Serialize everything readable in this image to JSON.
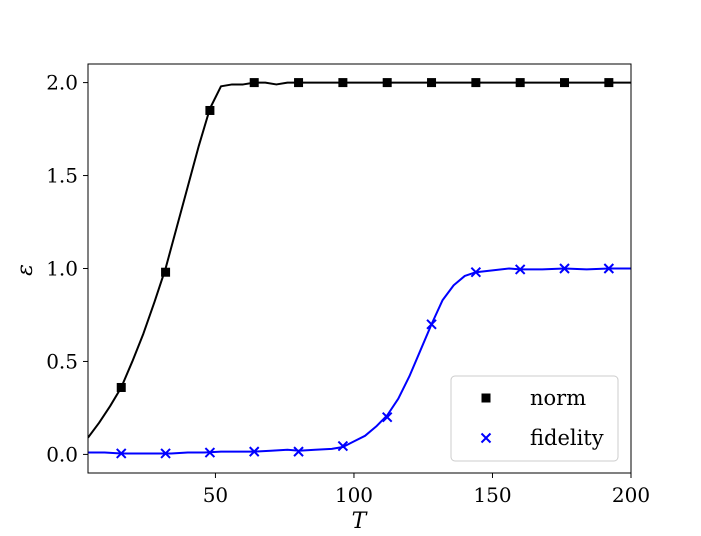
{
  "chart_data": {
    "type": "line",
    "title": "",
    "xlabel": "T",
    "ylabel": "ε",
    "xlim": [
      4,
      200
    ],
    "ylim": [
      -0.1,
      2.1
    ],
    "xticks": [
      50,
      100,
      150,
      200
    ],
    "yticks": [
      0.0,
      0.5,
      1.0,
      1.5,
      2.0
    ],
    "xtick_labels": [
      "50",
      "100",
      "150",
      "200"
    ],
    "ytick_labels": [
      "0.0",
      "0.5",
      "1.0",
      "1.5",
      "2.0"
    ],
    "grid": false,
    "legend_position": "bottom-right",
    "series": [
      {
        "name": "norm",
        "color": "#000000",
        "marker": "square",
        "line": {
          "x": [
            4,
            8,
            12,
            16,
            20,
            24,
            28,
            32,
            36,
            40,
            44,
            48,
            52,
            56,
            60,
            64,
            68,
            72,
            76,
            80,
            90,
            100,
            120,
            140,
            160,
            180,
            200
          ],
          "y": [
            0.09,
            0.17,
            0.26,
            0.36,
            0.5,
            0.65,
            0.82,
            1.0,
            1.22,
            1.44,
            1.66,
            1.86,
            1.98,
            1.99,
            1.99,
            2.0,
            2.0,
            1.99,
            2.0,
            2.0,
            2.0,
            2.0,
            2.0,
            2.0,
            2.0,
            2.0,
            2.0
          ]
        },
        "points": {
          "x": [
            16,
            32,
            48,
            64,
            80,
            96,
            112,
            128,
            144,
            160,
            176,
            192
          ],
          "y": [
            0.36,
            0.98,
            1.85,
            2.0,
            2.0,
            2.0,
            2.0,
            2.0,
            2.0,
            2.0,
            2.0,
            2.0
          ]
        }
      },
      {
        "name": "fidelity",
        "color": "#0000ff",
        "marker": "x",
        "line": {
          "x": [
            4,
            10,
            16,
            22,
            28,
            34,
            40,
            46,
            52,
            58,
            64,
            70,
            76,
            80,
            86,
            92,
            96,
            100,
            104,
            108,
            112,
            116,
            120,
            124,
            128,
            132,
            136,
            140,
            144,
            150,
            156,
            160,
            168,
            176,
            184,
            192,
            200
          ],
          "y": [
            0.01,
            0.01,
            0.005,
            0.005,
            0.005,
            0.005,
            0.01,
            0.01,
            0.015,
            0.015,
            0.015,
            0.02,
            0.025,
            0.02,
            0.025,
            0.03,
            0.04,
            0.07,
            0.1,
            0.15,
            0.21,
            0.3,
            0.42,
            0.56,
            0.7,
            0.83,
            0.91,
            0.96,
            0.98,
            0.99,
            1.0,
            0.995,
            0.995,
            1.0,
            0.995,
            1.0,
            1.0
          ]
        },
        "points": {
          "x": [
            16,
            32,
            48,
            64,
            80,
            96,
            112,
            128,
            144,
            160,
            176,
            192
          ],
          "y": [
            0.005,
            0.005,
            0.01,
            0.015,
            0.015,
            0.045,
            0.2,
            0.7,
            0.98,
            0.995,
            1.0,
            1.0
          ]
        }
      }
    ]
  }
}
